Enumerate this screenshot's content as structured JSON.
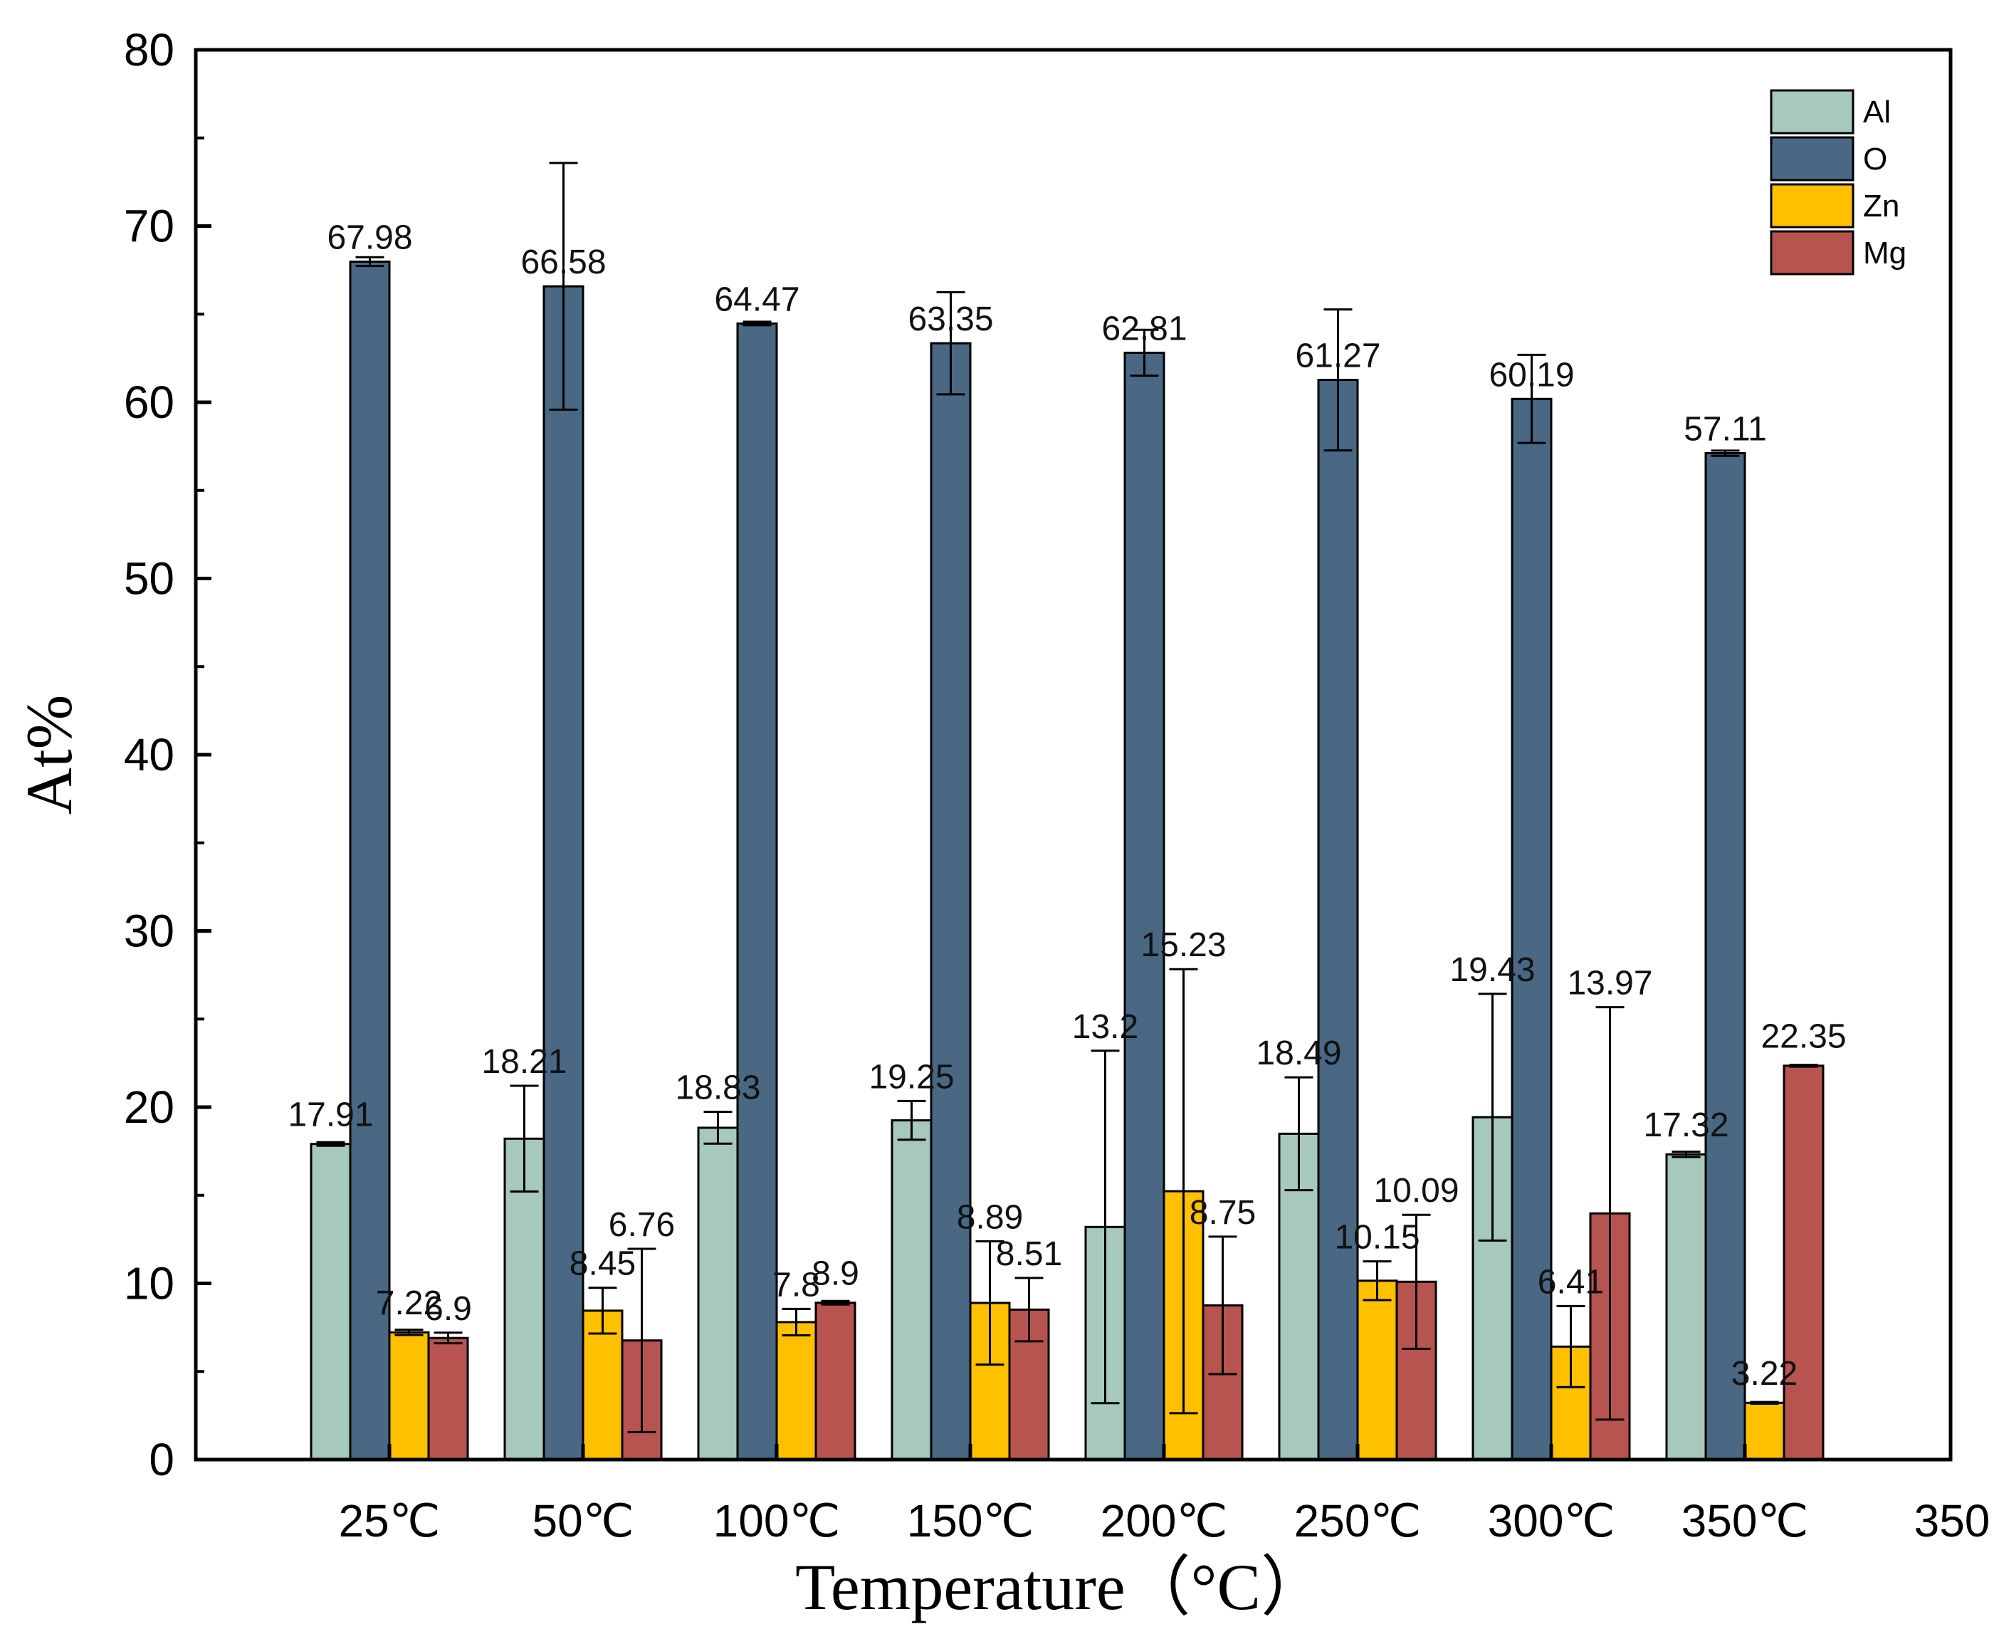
{
  "chart_data": {
    "type": "bar",
    "title": "",
    "xlabel": "Temperature（°C）",
    "ylabel": "At%",
    "ylim": [
      0,
      80
    ],
    "xlim": [
      0,
      350
    ],
    "y_ticks": [
      "0",
      "10",
      "20",
      "30",
      "40",
      "50",
      "60",
      "70",
      "80"
    ],
    "x_edge_tick": "350",
    "categories": [
      "25℃",
      "50℃",
      "100℃",
      "150℃",
      "200℃",
      "250℃",
      "300℃",
      "350℃"
    ],
    "legend_position": "top-right",
    "series": [
      {
        "name": "Al",
        "color": "#a7c8bd",
        "values": [
          17.91,
          18.21,
          18.83,
          19.25,
          13.2,
          18.49,
          19.43,
          17.32
        ],
        "labels": [
          "17.91",
          "18.21",
          "18.83",
          "19.25",
          "13.2",
          "18.49",
          "19.43",
          "17.32"
        ],
        "errors": [
          0.1,
          3.0,
          0.9,
          1.1,
          10.0,
          3.2,
          7.0,
          0.15
        ]
      },
      {
        "name": "O",
        "color": "#4a6784",
        "values": [
          67.98,
          66.58,
          64.47,
          63.35,
          62.81,
          61.27,
          60.19,
          57.11
        ],
        "labels": [
          "67.98",
          "66.58",
          "64.47",
          "63.35",
          "62.81",
          "61.27",
          "60.19",
          "57.11"
        ],
        "errors": [
          0.25,
          7.0,
          0.1,
          2.9,
          1.3,
          4.0,
          2.5,
          0.15
        ]
      },
      {
        "name": "Zn",
        "color": "#ffc000",
        "values": [
          7.22,
          8.45,
          7.8,
          8.89,
          15.23,
          10.15,
          6.41,
          3.22
        ],
        "labels": [
          "7.22",
          "8.45",
          "7.8",
          "8.89",
          "15.23",
          "10.15",
          "6.41",
          "3.22"
        ],
        "errors": [
          0.15,
          1.3,
          0.75,
          3.5,
          12.6,
          1.1,
          2.3,
          0.05
        ]
      },
      {
        "name": "Mg",
        "color": "#b85450",
        "values": [
          6.9,
          6.76,
          8.9,
          8.51,
          8.75,
          10.09,
          13.97,
          22.35
        ],
        "labels": [
          "6.9",
          "6.76",
          "8.9",
          "8.51",
          "8.75",
          "10.09",
          "13.97",
          "22.35"
        ],
        "errors": [
          0.3,
          5.2,
          0.1,
          1.8,
          3.9,
          3.8,
          11.7,
          0.05
        ]
      }
    ]
  }
}
